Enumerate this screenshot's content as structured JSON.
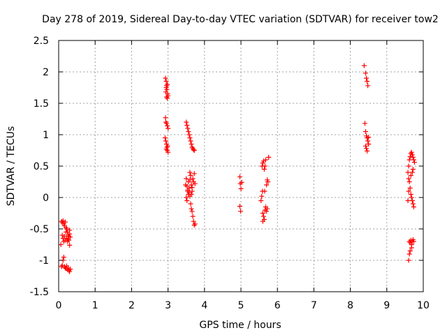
{
  "chart_data": {
    "type": "scatter",
    "title": "Day 278 of 2019, Sidereal Day-to-day VTEC variation (SDTVAR) for receiver tow2",
    "xlabel": "GPS time / hours",
    "ylabel": "SDTVAR / TECUs",
    "xlim": [
      0,
      10
    ],
    "ylim": [
      -1.5,
      2.5
    ],
    "grid": true,
    "marker": "+",
    "xticks": [
      0,
      1,
      2,
      3,
      4,
      5,
      6,
      7,
      8,
      9,
      10
    ],
    "xtick_labels": [
      "0",
      "1",
      "2",
      "3",
      "4",
      "5",
      "6",
      "7",
      "8",
      "9",
      "10"
    ],
    "yticks": [
      -1.5,
      -1,
      -0.5,
      0,
      0.5,
      1,
      1.5,
      2,
      2.5
    ],
    "ytick_labels": [
      "-1.5",
      "-1",
      "-0.5",
      "0",
      "0.5",
      "1",
      "1.5",
      "2",
      "2.5"
    ],
    "series": [
      {
        "name": "SDTVAR",
        "color": "#ff0000",
        "points": [
          [
            0.08,
            -0.38
          ],
          [
            0.1,
            -0.4
          ],
          [
            0.12,
            -0.37
          ],
          [
            0.14,
            -0.42
          ],
          [
            0.16,
            -0.45
          ],
          [
            0.18,
            -0.39
          ],
          [
            0.2,
            -0.48
          ],
          [
            0.22,
            -0.5
          ],
          [
            0.24,
            -0.55
          ],
          [
            0.26,
            -0.6
          ],
          [
            0.28,
            -0.62
          ],
          [
            0.3,
            -0.58
          ],
          [
            0.1,
            -0.6
          ],
          [
            0.12,
            -0.65
          ],
          [
            0.14,
            -0.7
          ],
          [
            0.16,
            -0.62
          ],
          [
            0.18,
            -0.68
          ],
          [
            0.2,
            -0.55
          ],
          [
            0.22,
            -0.65
          ],
          [
            0.24,
            -0.7
          ],
          [
            0.26,
            -0.66
          ],
          [
            0.28,
            -0.68
          ],
          [
            0.3,
            -0.52
          ],
          [
            0.32,
            -0.63
          ],
          [
            0.06,
            -0.75
          ],
          [
            0.3,
            -0.76
          ],
          [
            0.12,
            -1.0
          ],
          [
            0.14,
            -0.95
          ],
          [
            0.1,
            -1.08
          ],
          [
            0.08,
            -1.1
          ],
          [
            0.16,
            -1.1
          ],
          [
            0.18,
            -1.12
          ],
          [
            0.2,
            -1.13
          ],
          [
            0.22,
            -1.09
          ],
          [
            0.24,
            -1.15
          ],
          [
            0.26,
            -1.12
          ],
          [
            0.28,
            -1.16
          ],
          [
            0.3,
            -1.18
          ],
          [
            0.32,
            -1.14
          ],
          [
            2.93,
            1.9
          ],
          [
            2.95,
            1.85
          ],
          [
            2.96,
            1.78
          ],
          [
            2.97,
            1.72
          ],
          [
            2.98,
            1.8
          ],
          [
            2.94,
            1.68
          ],
          [
            2.99,
            1.65
          ],
          [
            3.0,
            1.62
          ],
          [
            2.96,
            1.6
          ],
          [
            2.98,
            1.58
          ],
          [
            2.95,
            1.75
          ],
          [
            2.93,
            1.27
          ],
          [
            2.94,
            1.2
          ],
          [
            2.96,
            1.18
          ],
          [
            2.98,
            1.14
          ],
          [
            3.0,
            1.1
          ],
          [
            2.92,
            0.95
          ],
          [
            2.94,
            0.9
          ],
          [
            2.96,
            0.85
          ],
          [
            2.97,
            0.8
          ],
          [
            2.98,
            0.75
          ],
          [
            3.0,
            0.72
          ],
          [
            2.95,
            0.77
          ],
          [
            2.99,
            0.82
          ],
          [
            3.5,
            1.2
          ],
          [
            3.52,
            1.15
          ],
          [
            3.54,
            1.1
          ],
          [
            3.56,
            1.05
          ],
          [
            3.58,
            1.0
          ],
          [
            3.6,
            0.95
          ],
          [
            3.62,
            0.9
          ],
          [
            3.64,
            0.85
          ],
          [
            3.66,
            0.8
          ],
          [
            3.68,
            0.78
          ],
          [
            3.7,
            0.76
          ],
          [
            3.72,
            0.75
          ],
          [
            3.48,
            0.2
          ],
          [
            3.5,
            0.3
          ],
          [
            3.52,
            0.18
          ],
          [
            3.54,
            0.1
          ],
          [
            3.56,
            0.05
          ],
          [
            3.58,
            0.15
          ],
          [
            3.6,
            0.28
          ],
          [
            3.62,
            0.35
          ],
          [
            3.64,
            0.2
          ],
          [
            3.66,
            0.1
          ],
          [
            3.68,
            0.3
          ],
          [
            3.7,
            0.25
          ],
          [
            3.72,
            0.38
          ],
          [
            3.74,
            0.22
          ],
          [
            3.5,
            0.0
          ],
          [
            3.52,
            -0.05
          ],
          [
            3.54,
            0.12
          ],
          [
            3.56,
            0.25
          ],
          [
            3.58,
            0.08
          ],
          [
            3.6,
            0.02
          ],
          [
            3.62,
            -0.1
          ],
          [
            3.64,
            -0.18
          ],
          [
            3.66,
            -0.22
          ],
          [
            3.68,
            -0.3
          ],
          [
            3.7,
            -0.38
          ],
          [
            3.72,
            -0.44
          ],
          [
            3.74,
            -0.42
          ],
          [
            3.6,
            0.4
          ],
          [
            3.64,
            0.05
          ],
          [
            3.66,
            0.16
          ],
          [
            4.97,
            0.33
          ],
          [
            4.98,
            0.22
          ],
          [
            5.0,
            0.14
          ],
          [
            5.02,
            0.24
          ],
          [
            4.97,
            -0.14
          ],
          [
            4.99,
            -0.22
          ],
          [
            5.55,
            -0.05
          ],
          [
            5.57,
            0.02
          ],
          [
            5.59,
            0.1
          ],
          [
            5.6,
            -0.25
          ],
          [
            5.62,
            -0.3
          ],
          [
            5.64,
            -0.35
          ],
          [
            5.66,
            -0.2
          ],
          [
            5.58,
            0.5
          ],
          [
            5.6,
            0.55
          ],
          [
            5.62,
            0.58
          ],
          [
            5.64,
            0.45
          ],
          [
            5.66,
            0.5
          ],
          [
            5.68,
            0.6
          ],
          [
            5.7,
            0.2
          ],
          [
            5.72,
            0.28
          ],
          [
            5.74,
            0.25
          ],
          [
            5.76,
            0.64
          ],
          [
            5.7,
            -0.22
          ],
          [
            5.72,
            -0.18
          ],
          [
            5.68,
            -0.15
          ],
          [
            5.65,
            0.1
          ],
          [
            5.6,
            -0.38
          ],
          [
            8.38,
            2.1
          ],
          [
            8.42,
            1.98
          ],
          [
            8.44,
            1.9
          ],
          [
            8.46,
            1.85
          ],
          [
            8.48,
            1.78
          ],
          [
            8.4,
            1.18
          ],
          [
            8.42,
            1.05
          ],
          [
            8.44,
            0.98
          ],
          [
            8.46,
            0.95
          ],
          [
            8.48,
            0.9
          ],
          [
            8.5,
            0.85
          ],
          [
            8.42,
            0.82
          ],
          [
            8.44,
            0.78
          ],
          [
            8.46,
            0.74
          ],
          [
            8.5,
            0.96
          ],
          [
            9.58,
            0.4
          ],
          [
            9.6,
            0.5
          ],
          [
            9.62,
            0.6
          ],
          [
            9.64,
            0.65
          ],
          [
            9.66,
            0.7
          ],
          [
            9.68,
            0.72
          ],
          [
            9.7,
            0.68
          ],
          [
            9.72,
            0.64
          ],
          [
            9.74,
            0.6
          ],
          [
            9.76,
            0.56
          ],
          [
            9.6,
            0.3
          ],
          [
            9.62,
            0.25
          ],
          [
            9.64,
            0.15
          ],
          [
            9.66,
            0.05
          ],
          [
            9.68,
            0.0
          ],
          [
            9.7,
            -0.05
          ],
          [
            9.72,
            -0.1
          ],
          [
            9.74,
            -0.15
          ],
          [
            9.58,
            -0.05
          ],
          [
            9.6,
            0.1
          ],
          [
            9.66,
            0.35
          ],
          [
            9.7,
            0.4
          ],
          [
            9.72,
            0.45
          ],
          [
            9.62,
            -0.7
          ],
          [
            9.64,
            -0.72
          ],
          [
            9.66,
            -0.68
          ],
          [
            9.68,
            -0.75
          ],
          [
            9.7,
            -0.7
          ],
          [
            9.72,
            -0.67
          ],
          [
            9.74,
            -0.7
          ],
          [
            9.62,
            -0.9
          ],
          [
            9.6,
            -1.0
          ],
          [
            9.64,
            -0.85
          ],
          [
            9.68,
            -0.8
          ]
        ]
      }
    ]
  }
}
